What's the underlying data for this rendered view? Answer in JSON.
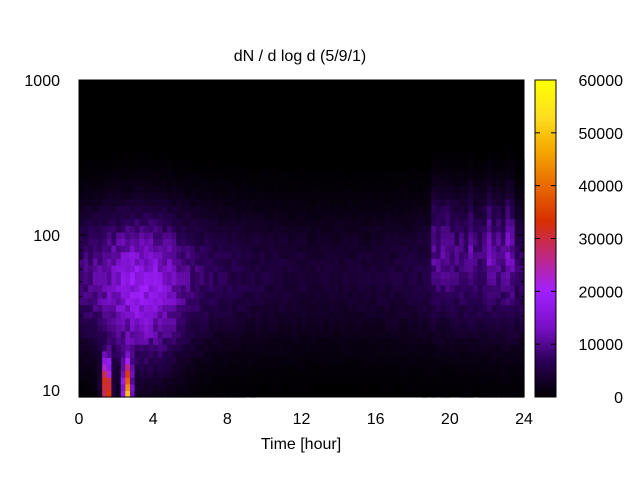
{
  "chart_data": {
    "type": "heatmap",
    "title": "dN / d log d (5/9/1)",
    "xlabel": "Time [hour]",
    "ylabel": "",
    "x_range": [
      0,
      24
    ],
    "x_ticks": [
      0,
      4,
      8,
      12,
      16,
      20,
      24
    ],
    "y_scale": "log",
    "y_range": [
      9,
      1000
    ],
    "y_ticks": [
      10,
      100,
      1000
    ],
    "colorbar": {
      "range": [
        0,
        60000
      ],
      "ticks": [
        0,
        10000,
        20000,
        30000,
        40000,
        50000,
        60000
      ],
      "palette": [
        "#000000",
        "#2a0055",
        "#7a10c8",
        "#a020ff",
        "#c02880",
        "#d83000",
        "#e86a00",
        "#f5a800",
        "#ffe020",
        "#ffff00"
      ]
    },
    "grid": false,
    "features": {
      "background_level": 8000,
      "upper_black_region_diameter_above": 380,
      "afternoon_upper_band_hours": [
        19,
        23.5
      ],
      "bursts": [
        {
          "time": 1.5,
          "diameter": 10,
          "peak": 45000
        },
        {
          "time": 2.6,
          "diameter": 10,
          "peak": 42000
        }
      ]
    }
  }
}
